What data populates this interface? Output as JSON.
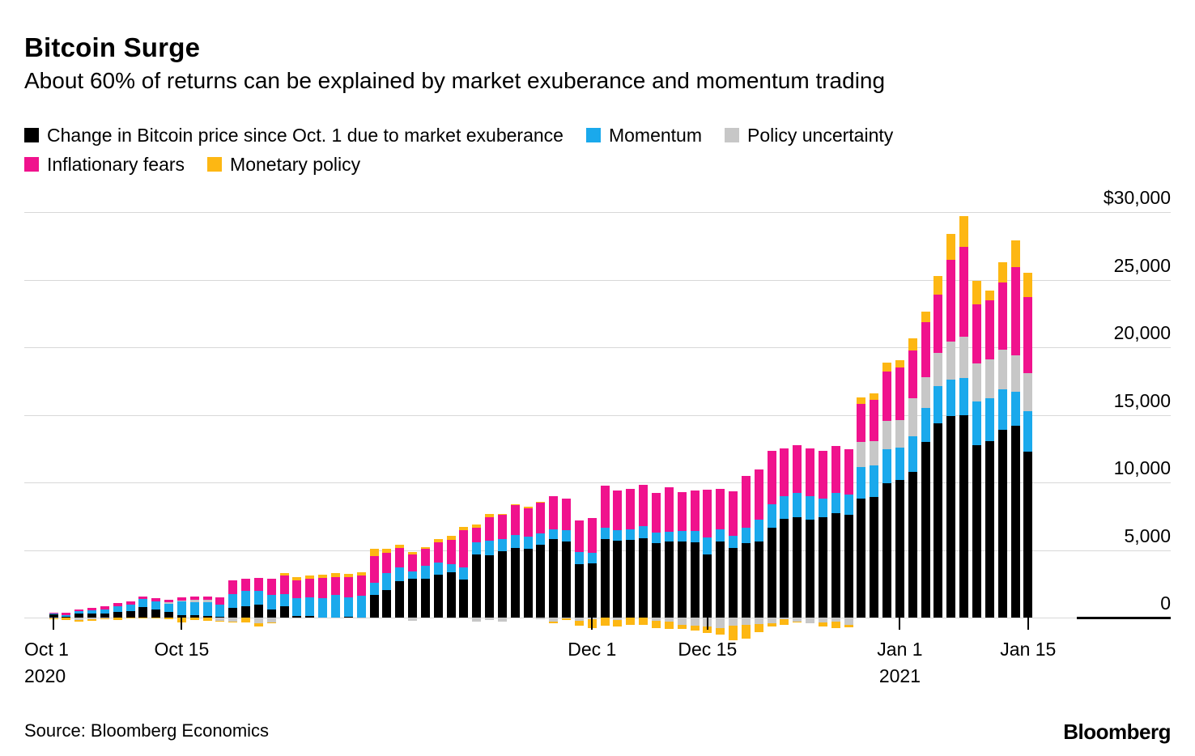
{
  "header": {
    "title": "Bitcoin Surge",
    "subtitle": "About 60% of returns can be explained by market exuberance and momentum trading"
  },
  "footer": {
    "source": "Source: Bloomberg Economics",
    "logo": "Bloomberg"
  },
  "chart_data": {
    "type": "bar",
    "stacked": true,
    "title": "Bitcoin Surge",
    "xlabel": "",
    "ylabel": "",
    "ylim": [
      0,
      30000
    ],
    "y_tick_step": 5000,
    "y_tick_labels": [
      "$30,000",
      "25,000",
      "20,000",
      "15,000",
      "10,000",
      "5,000",
      "0"
    ],
    "grid": true,
    "legend_position": "top",
    "legend_rows": [
      [
        0,
        1,
        2
      ],
      [
        3,
        4
      ]
    ],
    "series": [
      {
        "name": "Change in Bitcoin price since Oct. 1 due to market exuberance",
        "color": "#000000"
      },
      {
        "name": "Momentum",
        "color": "#1aa9ec"
      },
      {
        "name": "Policy uncertainty",
        "color": "#c7c7c7"
      },
      {
        "name": "Inflationary fears",
        "color": "#f0128d"
      },
      {
        "name": "Monetary policy",
        "color": "#fdb713"
      }
    ],
    "x_ticks": [
      {
        "index": 0,
        "label": "Oct 1",
        "sublabel": "2020",
        "align": "left"
      },
      {
        "index": 10,
        "label": "Oct 15",
        "sublabel": "",
        "align": "center"
      },
      {
        "index": 42,
        "label": "Dec 1",
        "sublabel": "",
        "align": "center"
      },
      {
        "index": 51,
        "label": "Dec 15",
        "sublabel": "",
        "align": "center"
      },
      {
        "index": 66,
        "label": "Jan 1",
        "sublabel": "2021",
        "align": "center"
      },
      {
        "index": 76,
        "label": "Jan 15",
        "sublabel": "",
        "align": "center"
      }
    ],
    "values_note": "each row = [exuberance, momentum, policy_uncertainty, inflationary_fears, monetary_policy] in USD; negatives plot below zero",
    "bars": [
      [
        250,
        60,
        -50,
        60,
        -80
      ],
      [
        60,
        150,
        0,
        130,
        -150
      ],
      [
        290,
        165,
        -190,
        145,
        -80
      ],
      [
        330,
        210,
        -145,
        165,
        -105
      ],
      [
        290,
        310,
        -60,
        210,
        -60
      ],
      [
        395,
        460,
        0,
        210,
        -165
      ],
      [
        460,
        520,
        0,
        210,
        -60
      ],
      [
        750,
        645,
        0,
        190,
        -60
      ],
      [
        600,
        625,
        0,
        210,
        -80
      ],
      [
        415,
        625,
        85,
        210,
        -125
      ],
      [
        210,
        980,
        85,
        210,
        -330
      ],
      [
        210,
        935,
        190,
        210,
        -150
      ],
      [
        150,
        1000,
        150,
        230,
        -250
      ],
      [
        60,
        875,
        -230,
        560,
        -60
      ],
      [
        710,
        1040,
        -270,
        980,
        -80
      ],
      [
        855,
        1100,
        0,
        940,
        -330
      ],
      [
        980,
        980,
        -440,
        980,
        -210
      ],
      [
        605,
        1080,
        -330,
        1165,
        -60
      ],
      [
        810,
        940,
        0,
        1350,
        165
      ],
      [
        145,
        1290,
        -60,
        1350,
        200
      ],
      [
        145,
        1330,
        0,
        1415,
        250
      ],
      [
        0,
        1435,
        0,
        1500,
        270
      ],
      [
        0,
        1685,
        0,
        1310,
        310
      ],
      [
        60,
        1455,
        0,
        1455,
        270
      ],
      [
        0,
        1645,
        -60,
        1460,
        250
      ],
      [
        1685,
        895,
        -60,
        1980,
        520
      ],
      [
        2060,
        1250,
        0,
        1460,
        310
      ],
      [
        2685,
        1000,
        0,
        1460,
        250
      ],
      [
        2850,
        560,
        -230,
        1250,
        210
      ],
      [
        2895,
        940,
        0,
        1250,
        145
      ],
      [
        3200,
        895,
        0,
        1460,
        250
      ],
      [
        3350,
        625,
        -60,
        1790,
        290
      ],
      [
        2790,
        940,
        0,
        2710,
        250
      ],
      [
        4660,
        895,
        -270,
        1120,
        210
      ],
      [
        4600,
        1100,
        -150,
        1730,
        250
      ],
      [
        4930,
        875,
        -270,
        1830,
        60
      ],
      [
        5180,
        935,
        0,
        2225,
        60
      ],
      [
        5080,
        935,
        0,
        2080,
        100
      ],
      [
        5400,
        800,
        -100,
        2300,
        80
      ],
      [
        5800,
        730,
        -290,
        2440,
        -145
      ],
      [
        5600,
        875,
        -60,
        2350,
        -100
      ],
      [
        3930,
        940,
        -230,
        2290,
        -375
      ],
      [
        4030,
        770,
        -125,
        2560,
        -625
      ],
      [
        5800,
        830,
        0,
        3120,
        -600
      ],
      [
        5700,
        770,
        -190,
        2910,
        -460
      ],
      [
        5740,
        790,
        0,
        2975,
        -520
      ],
      [
        5845,
        895,
        0,
        3060,
        -540
      ],
      [
        5490,
        770,
        -230,
        2975,
        -520
      ],
      [
        5600,
        730,
        -270,
        3330,
        -580
      ],
      [
        5600,
        790,
        -540,
        2910,
        -310
      ],
      [
        5560,
        875,
        -600,
        2950,
        -350
      ],
      [
        4660,
        1250,
        -645,
        3540,
        -520
      ],
      [
        5640,
        895,
        -750,
        2975,
        -480
      ],
      [
        5180,
        875,
        -600,
        3290,
        -1080
      ],
      [
        5490,
        1140,
        -540,
        3850,
        -1040
      ],
      [
        5640,
        1580,
        -480,
        3750,
        -580
      ],
      [
        6640,
        1770,
        -400,
        3950,
        -250
      ],
      [
        7300,
        1660,
        -100,
        3550,
        -440
      ],
      [
        7450,
        1790,
        -270,
        3540,
        -100
      ],
      [
        7220,
        1750,
        -440,
        3540,
        0
      ],
      [
        7400,
        1390,
        -330,
        3540,
        -310
      ],
      [
        7720,
        1520,
        -270,
        3430,
        -480
      ],
      [
        7630,
        1460,
        -540,
        3370,
        -200
      ],
      [
        8820,
        2290,
        1870,
        2810,
        520
      ],
      [
        8920,
        2330,
        1830,
        3020,
        480
      ],
      [
        9920,
        2540,
        2080,
        3640,
        690
      ],
      [
        10210,
        2350,
        2080,
        3850,
        580
      ],
      [
        10800,
        2600,
        2810,
        3540,
        940
      ],
      [
        12980,
        2500,
        2290,
        4060,
        830
      ],
      [
        14400,
        2700,
        2460,
        4320,
        1380
      ],
      [
        14900,
        2700,
        2800,
        6080,
        1900
      ],
      [
        15000,
        2750,
        3000,
        6700,
        2250
      ],
      [
        12780,
        3180,
        2820,
        4380,
        1740
      ],
      [
        13080,
        3120,
        2880,
        4380,
        720
      ],
      [
        13900,
        3000,
        2900,
        5000,
        1480
      ],
      [
        14200,
        2500,
        2700,
        6500,
        2000
      ],
      [
        12300,
        3000,
        2800,
        5600,
        1800
      ]
    ]
  }
}
